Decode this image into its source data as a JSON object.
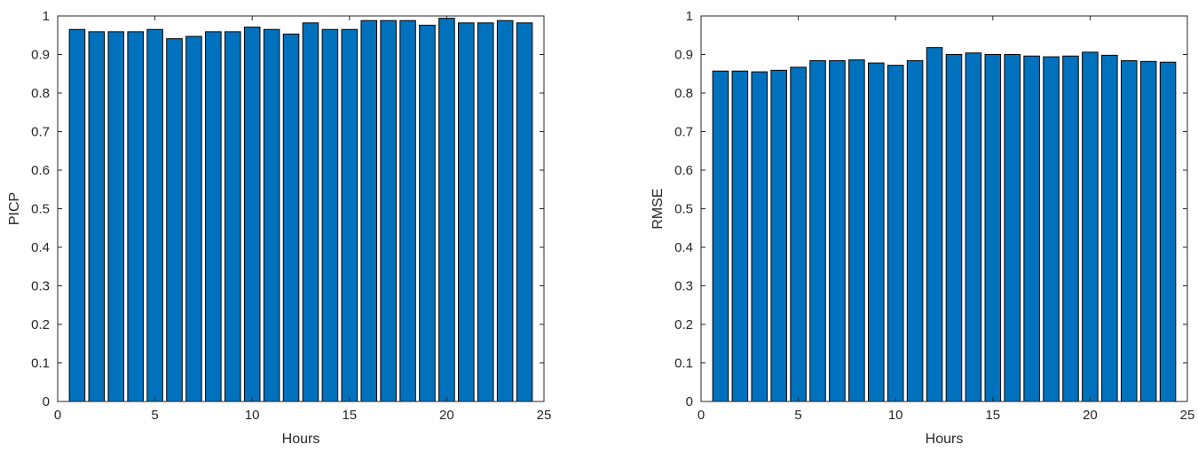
{
  "chart_data": [
    {
      "type": "bar",
      "xlabel": "Hours",
      "ylabel": "PICP",
      "xlim": [
        0,
        25
      ],
      "ylim": [
        0,
        1
      ],
      "xticks": [
        0,
        5,
        10,
        15,
        20,
        25
      ],
      "yticks": [
        0,
        0.1,
        0.2,
        0.3,
        0.4,
        0.5,
        0.6,
        0.7,
        0.8,
        0.9,
        1
      ],
      "xtick_labels": [
        "0",
        "5",
        "10",
        "15",
        "20",
        "25"
      ],
      "ytick_labels": [
        "0",
        "0.1",
        "0.2",
        "0.3",
        "0.4",
        "0.5",
        "0.6",
        "0.7",
        "0.8",
        "0.9",
        "1"
      ],
      "grid": false,
      "color": "#0072BD",
      "x": [
        1,
        2,
        3,
        4,
        5,
        6,
        7,
        8,
        9,
        10,
        11,
        12,
        13,
        14,
        15,
        16,
        17,
        18,
        19,
        20,
        21,
        22,
        23,
        24
      ],
      "values": [
        0.965,
        0.959,
        0.959,
        0.959,
        0.965,
        0.941,
        0.947,
        0.959,
        0.959,
        0.971,
        0.965,
        0.953,
        0.982,
        0.965,
        0.965,
        0.988,
        0.988,
        0.988,
        0.976,
        0.994,
        0.982,
        0.982,
        0.988,
        0.982
      ]
    },
    {
      "type": "bar",
      "xlabel": "Hours",
      "ylabel": "RMSE",
      "xlim": [
        0,
        25
      ],
      "ylim": [
        0,
        1
      ],
      "xticks": [
        0,
        5,
        10,
        15,
        20,
        25
      ],
      "yticks": [
        0,
        0.1,
        0.2,
        0.3,
        0.4,
        0.5,
        0.6,
        0.7,
        0.8,
        0.9,
        1
      ],
      "xtick_labels": [
        "0",
        "5",
        "10",
        "15",
        "20",
        "25"
      ],
      "ytick_labels": [
        "0",
        "0.1",
        "0.2",
        "0.3",
        "0.4",
        "0.5",
        "0.6",
        "0.7",
        "0.8",
        "0.9",
        "1"
      ],
      "grid": false,
      "color": "#0072BD",
      "x": [
        1,
        2,
        3,
        4,
        5,
        6,
        7,
        8,
        9,
        10,
        11,
        12,
        13,
        14,
        15,
        16,
        17,
        18,
        19,
        20,
        21,
        22,
        23,
        24
      ],
      "values": [
        0.857,
        0.857,
        0.855,
        0.859,
        0.867,
        0.884,
        0.884,
        0.886,
        0.878,
        0.872,
        0.884,
        0.918,
        0.9,
        0.904,
        0.9,
        0.9,
        0.896,
        0.894,
        0.896,
        0.906,
        0.898,
        0.884,
        0.882,
        0.88
      ]
    }
  ]
}
